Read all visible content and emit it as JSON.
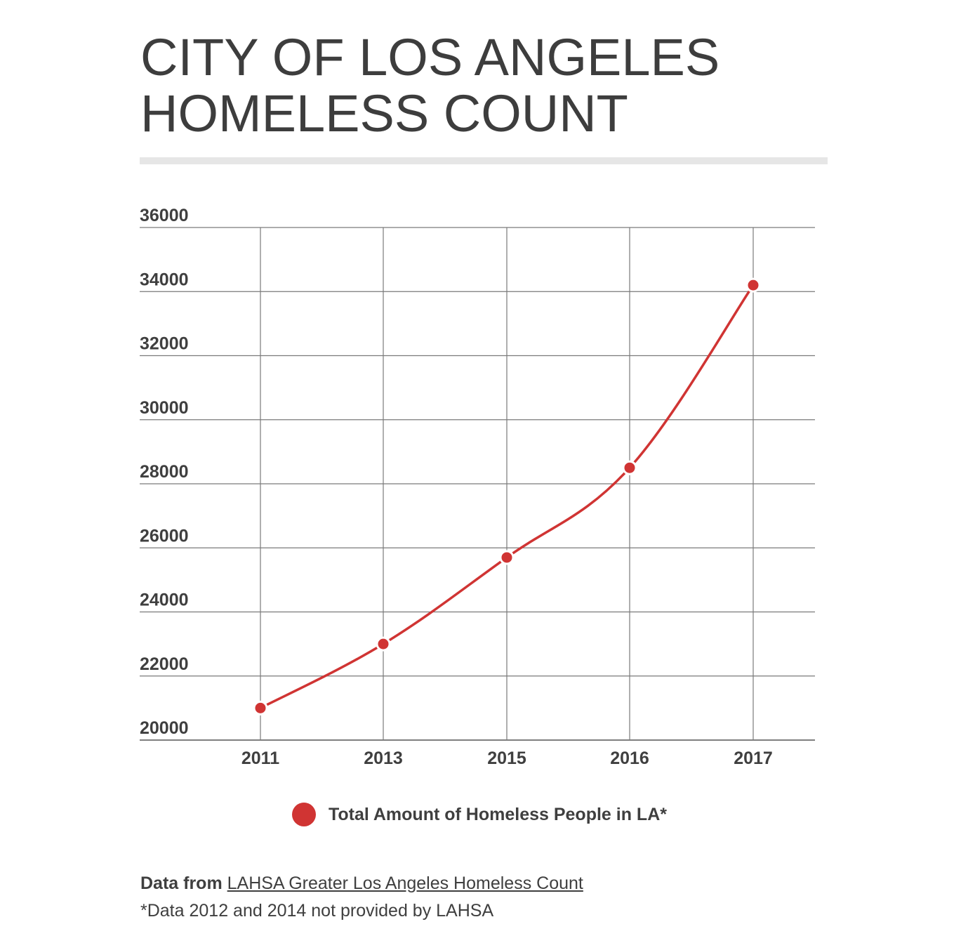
{
  "title_lines": [
    "CITY OF LOS ANGELES",
    "HOMELESS COUNT"
  ],
  "colors": {
    "series": "#d03433",
    "grid": "#7a7a7a",
    "rule": "#e6e6e6",
    "text": "#3f3f3f"
  },
  "chart_data": {
    "type": "line",
    "title": "CITY OF LOS ANGELES HOMELESS COUNT",
    "xlabel": "",
    "ylabel": "",
    "categories": [
      "2011",
      "2013",
      "2015",
      "2016",
      "2017"
    ],
    "series": [
      {
        "name": "Total Amount of Homeless People in LA*",
        "values": [
          21000,
          23000,
          25700,
          28500,
          34200
        ]
      }
    ],
    "ylim": [
      20000,
      36000
    ],
    "yticks": [
      "36000",
      "34000",
      "32000",
      "30000",
      "28000",
      "26000",
      "24000",
      "22000",
      "20000"
    ],
    "grid": true,
    "smooth": true,
    "legend": "bottom-center"
  },
  "legend_label": "Total Amount of Homeless People in LA*",
  "source_prefix": "Data from",
  "source_link": "LAHSA Greater Los Angeles Homeless Count",
  "footnote": "*Data 2012 and 2014 not provided by LAHSA"
}
